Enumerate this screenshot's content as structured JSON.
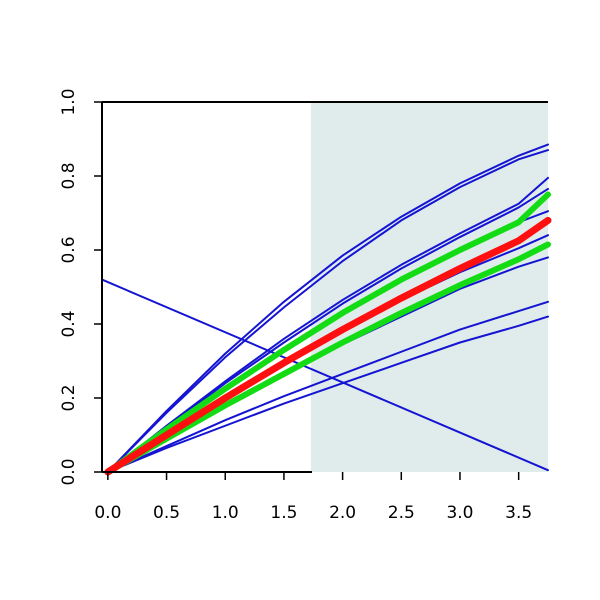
{
  "chart_data": {
    "type": "line",
    "title": "",
    "xlabel": "",
    "ylabel": "",
    "xlim": [
      -0.05,
      3.75
    ],
    "ylim": [
      0,
      1
    ],
    "x_ticks": [
      0,
      0.5,
      1,
      1.5,
      2,
      2.5,
      3,
      3.5
    ],
    "x_tick_labels": [
      "0.0",
      "0.5",
      "1.0",
      "1.5",
      "2.0",
      "2.5",
      "3.0",
      "3.5"
    ],
    "y_ticks": [
      0,
      0.2,
      0.4,
      0.6,
      0.8,
      1
    ],
    "y_tick_labels": [
      "0.0",
      "0.2",
      "0.4",
      "0.6",
      "0.8",
      "1.0"
    ],
    "grid": false,
    "shaded_region": {
      "x": [
        1.73,
        3.75
      ],
      "color": "#e0ecec"
    },
    "colors": {
      "blue": "#1414d2",
      "green": "#14dc14",
      "red": "#ff0f0f",
      "axis": "#000000"
    },
    "series": [
      {
        "x": [
          0,
          0.5,
          1,
          1.5,
          2,
          2.5,
          3,
          3.5,
          3.75
        ],
        "y": [
          0,
          0.165,
          0.32,
          0.46,
          0.585,
          0.69,
          0.78,
          0.855,
          0.885
        ],
        "color": "blue",
        "width": 2
      },
      {
        "x": [
          0,
          0.5,
          1,
          1.5,
          2,
          2.5,
          3,
          3.5,
          3.75
        ],
        "y": [
          0,
          0.16,
          0.31,
          0.445,
          0.57,
          0.68,
          0.77,
          0.845,
          0.87
        ],
        "color": "blue",
        "width": 2
      },
      {
        "x": [
          0,
          0.5,
          1,
          1.5,
          2,
          2.5,
          3,
          3.5,
          3.75
        ],
        "y": [
          0,
          0.125,
          0.245,
          0.36,
          0.465,
          0.56,
          0.645,
          0.725,
          0.795
        ],
        "color": "blue",
        "width": 2
      },
      {
        "x": [
          0,
          0.5,
          1,
          1.5,
          2,
          2.5,
          3,
          3.5,
          3.75
        ],
        "y": [
          0,
          0.12,
          0.24,
          0.35,
          0.455,
          0.55,
          0.635,
          0.715,
          0.765
        ],
        "color": "blue",
        "width": 2
      },
      {
        "x": [
          0,
          0.5,
          1,
          1.5,
          2,
          2.5,
          3,
          3.5,
          3.75
        ],
        "y": [
          0,
          0.115,
          0.23,
          0.335,
          0.435,
          0.525,
          0.605,
          0.675,
          0.705
        ],
        "color": "blue",
        "width": 2
      },
      {
        "x": [
          0,
          0.5,
          1,
          1.5,
          2,
          2.5,
          3,
          3.5,
          3.75
        ],
        "y": [
          0,
          0.1,
          0.2,
          0.29,
          0.38,
          0.465,
          0.54,
          0.605,
          0.64
        ],
        "color": "blue",
        "width": 2
      },
      {
        "x": [
          0,
          0.5,
          1,
          1.5,
          2,
          2.5,
          3,
          3.5,
          3.75
        ],
        "y": [
          0,
          0.09,
          0.18,
          0.265,
          0.345,
          0.42,
          0.495,
          0.555,
          0.58
        ],
        "color": "blue",
        "width": 2
      },
      {
        "x": [
          0,
          0.5,
          1,
          1.5,
          2,
          2.5,
          3,
          3.5,
          3.75
        ],
        "y": [
          0,
          0.07,
          0.14,
          0.205,
          0.265,
          0.325,
          0.385,
          0.435,
          0.46
        ],
        "color": "blue",
        "width": 2
      },
      {
        "x": [
          0,
          0.5,
          1,
          1.5,
          2,
          2.5,
          3,
          3.5,
          3.75
        ],
        "y": [
          0,
          0.065,
          0.125,
          0.185,
          0.24,
          0.295,
          0.35,
          0.395,
          0.42
        ],
        "color": "blue",
        "width": 2
      },
      {
        "x": [
          -0.05,
          3.75
        ],
        "y": [
          0.52,
          0.005
        ],
        "color": "blue",
        "width": 2
      },
      {
        "x": [
          0,
          0.5,
          1,
          1.5,
          2,
          2.5,
          3,
          3.5,
          3.75
        ],
        "y": [
          0,
          0.115,
          0.225,
          0.33,
          0.43,
          0.52,
          0.6,
          0.675,
          0.75
        ],
        "color": "green",
        "width": 6
      },
      {
        "x": [
          0,
          0.5,
          1,
          1.5,
          2,
          2.5,
          3,
          3.5,
          3.75
        ],
        "y": [
          0,
          0.09,
          0.18,
          0.265,
          0.35,
          0.43,
          0.505,
          0.575,
          0.615
        ],
        "color": "green",
        "width": 6
      },
      {
        "x": [
          0,
          0.5,
          1,
          1.5,
          2,
          2.5,
          3,
          3.5,
          3.75
        ],
        "y": [
          0,
          0.1,
          0.2,
          0.295,
          0.385,
          0.47,
          0.55,
          0.625,
          0.68
        ],
        "color": "red",
        "width": 7
      }
    ]
  }
}
